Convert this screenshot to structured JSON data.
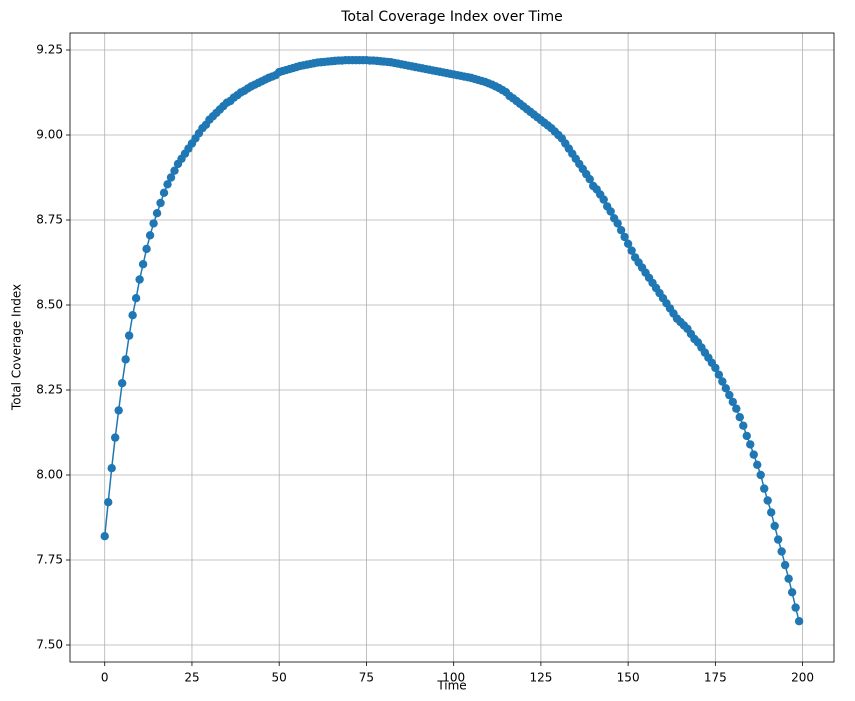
{
  "chart_data": {
    "type": "line",
    "title": "Total Coverage Index over Time",
    "x_label": "Time",
    "y_label": "Total Coverage Index",
    "x": [
      0,
      1,
      2,
      3,
      4,
      5,
      6,
      7,
      8,
      9,
      10,
      11,
      12,
      13,
      14,
      15,
      16,
      17,
      18,
      19,
      20,
      21,
      22,
      23,
      24,
      25,
      26,
      27,
      28,
      29,
      30,
      31,
      32,
      33,
      34,
      35,
      36,
      37,
      38,
      39,
      40,
      41,
      42,
      43,
      44,
      45,
      46,
      47,
      48,
      49,
      50,
      51,
      52,
      53,
      54,
      55,
      56,
      57,
      58,
      59,
      60,
      61,
      62,
      63,
      64,
      65,
      66,
      67,
      68,
      69,
      70,
      71,
      72,
      73,
      74,
      75,
      76,
      77,
      78,
      79,
      80,
      81,
      82,
      83,
      84,
      85,
      86,
      87,
      88,
      89,
      90,
      91,
      92,
      93,
      94,
      95,
      96,
      97,
      98,
      99,
      100,
      101,
      102,
      103,
      104,
      105,
      106,
      107,
      108,
      109,
      110,
      111,
      112,
      113,
      114,
      115,
      116,
      117,
      118,
      119,
      120,
      121,
      122,
      123,
      124,
      125,
      126,
      127,
      128,
      129,
      130,
      131,
      132,
      133,
      134,
      135,
      136,
      137,
      138,
      139,
      140,
      141,
      142,
      143,
      144,
      145,
      146,
      147,
      148,
      149,
      150,
      151,
      152,
      153,
      154,
      155,
      156,
      157,
      158,
      159,
      160,
      161,
      162,
      163,
      164,
      165,
      166,
      167,
      168,
      169,
      170,
      171,
      172,
      173,
      174,
      175,
      176,
      177,
      178,
      179,
      180,
      181,
      182,
      183,
      184,
      185,
      186,
      187,
      188,
      189,
      190,
      191,
      192,
      193,
      194,
      195,
      196,
      197,
      198,
      199
    ],
    "series": [
      {
        "name": "Total Coverage Index",
        "color": "#1f77b4",
        "values": [
          7.82,
          7.92,
          8.02,
          8.11,
          8.19,
          8.27,
          8.34,
          8.41,
          8.47,
          8.52,
          8.575,
          8.62,
          8.665,
          8.705,
          8.74,
          8.77,
          8.8,
          8.83,
          8.855,
          8.875,
          8.895,
          8.915,
          8.93,
          8.945,
          8.96,
          8.975,
          8.99,
          9.005,
          9.02,
          9.03,
          9.045,
          9.055,
          9.065,
          9.075,
          9.085,
          9.095,
          9.1,
          9.11,
          9.117,
          9.125,
          9.13,
          9.137,
          9.143,
          9.148,
          9.153,
          9.158,
          9.163,
          9.168,
          9.172,
          9.176,
          9.185,
          9.188,
          9.191,
          9.194,
          9.197,
          9.2,
          9.203,
          9.205,
          9.207,
          9.209,
          9.211,
          9.213,
          9.214,
          9.215,
          9.216,
          9.217,
          9.218,
          9.219,
          9.219,
          9.22,
          9.22,
          9.22,
          9.22,
          9.22,
          9.22,
          9.22,
          9.219,
          9.219,
          9.218,
          9.217,
          9.216,
          9.215,
          9.214,
          9.212,
          9.21,
          9.208,
          9.206,
          9.204,
          9.202,
          9.2,
          9.198,
          9.196,
          9.194,
          9.192,
          9.19,
          9.188,
          9.186,
          9.184,
          9.182,
          9.18,
          9.178,
          9.176,
          9.174,
          9.172,
          9.17,
          9.168,
          9.165,
          9.162,
          9.159,
          9.156,
          9.152,
          9.148,
          9.143,
          9.138,
          9.132,
          9.126,
          9.115,
          9.108,
          9.1,
          9.092,
          9.084,
          9.076,
          9.068,
          9.06,
          9.052,
          9.044,
          9.036,
          9.028,
          9.02,
          9.01,
          9.0,
          8.99,
          8.975,
          8.96,
          8.945,
          8.93,
          8.915,
          8.9,
          8.885,
          8.87,
          8.85,
          8.84,
          8.825,
          8.81,
          8.79,
          8.775,
          8.755,
          8.74,
          8.72,
          8.7,
          8.68,
          8.66,
          8.64,
          8.625,
          8.61,
          8.595,
          8.58,
          8.565,
          8.55,
          8.535,
          8.52,
          8.505,
          8.49,
          8.475,
          8.46,
          8.45,
          8.44,
          8.43,
          8.415,
          8.4,
          8.39,
          8.375,
          8.36,
          8.345,
          8.33,
          8.315,
          8.295,
          8.275,
          8.255,
          8.235,
          8.215,
          8.195,
          8.17,
          8.145,
          8.115,
          8.09,
          8.06,
          8.03,
          8.0,
          7.96,
          7.925,
          7.89,
          7.85,
          7.81,
          7.775,
          7.735,
          7.695,
          7.655,
          7.61,
          7.57
        ]
      }
    ],
    "xlim": [
      -9.95,
      209.0
    ],
    "ylim": [
      7.45,
      9.3
    ],
    "xticks": [
      0,
      25,
      50,
      75,
      100,
      125,
      150,
      175,
      200
    ],
    "yticks": [
      {
        "value": 7.5,
        "label": "7.50"
      },
      {
        "value": 7.75,
        "label": "7.75"
      },
      {
        "value": 8,
        "label": "8.00"
      },
      {
        "value": 8.25,
        "label": "8.25"
      },
      {
        "value": 8.5,
        "label": "8.50"
      },
      {
        "value": 8.75,
        "label": "8.75"
      },
      {
        "value": 9,
        "label": "9.00"
      },
      {
        "value": 9.25,
        "label": "9.25"
      }
    ],
    "grid": true
  }
}
